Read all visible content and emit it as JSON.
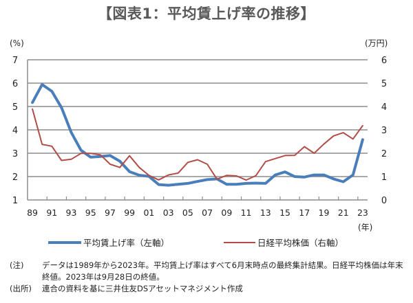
{
  "title": "【図表1：平均賃上げ率の推移】",
  "chart_data": {
    "type": "line",
    "title": "【図表1：平均賃上げ率の推移】",
    "xlabel": "(年)",
    "ylabel_left": "(%)",
    "ylabel_right": "(万円)",
    "ylim_left": [
      1,
      7
    ],
    "ylim_right": [
      0,
      6
    ],
    "yticks_left": [
      "1",
      "2",
      "3",
      "4",
      "5",
      "6",
      "7"
    ],
    "yticks_right": [
      "0",
      "1",
      "2",
      "3",
      "4",
      "5",
      "6"
    ],
    "grid": true,
    "legend_position": "bottom",
    "x": [
      1989,
      1990,
      1991,
      1992,
      1993,
      1994,
      1995,
      1996,
      1997,
      1998,
      1999,
      2000,
      2001,
      2002,
      2003,
      2004,
      2005,
      2006,
      2007,
      2008,
      2009,
      2010,
      2011,
      2012,
      2013,
      2014,
      2015,
      2016,
      2017,
      2018,
      2019,
      2020,
      2021,
      2022,
      2023
    ],
    "xtick_labels": [
      "89",
      "91",
      "93",
      "95",
      "97",
      "99",
      "01",
      "03",
      "05",
      "07",
      "09",
      "11",
      "13",
      "15",
      "17",
      "19",
      "21",
      "23"
    ],
    "series": [
      {
        "name": "平均賃上げ率（左軸）",
        "axis": "left",
        "color": "#4a7ebb",
        "values": [
          5.17,
          5.94,
          5.65,
          4.95,
          3.89,
          3.13,
          2.83,
          2.86,
          2.9,
          2.66,
          2.21,
          2.06,
          2.01,
          1.66,
          1.63,
          1.67,
          1.71,
          1.79,
          1.87,
          1.9,
          1.67,
          1.67,
          1.71,
          1.72,
          1.71,
          2.07,
          2.2,
          2.0,
          1.98,
          2.07,
          2.07,
          1.9,
          1.78,
          2.07,
          3.58
        ]
      },
      {
        "name": "日経平均株価（右軸）",
        "axis": "right",
        "color": "#b24c47",
        "values": [
          3.89,
          2.38,
          2.3,
          1.69,
          1.74,
          1.99,
          1.99,
          1.93,
          1.53,
          1.39,
          1.89,
          1.39,
          1.05,
          0.86,
          1.07,
          1.15,
          1.61,
          1.72,
          1.53,
          0.89,
          1.05,
          1.03,
          0.85,
          1.04,
          1.64,
          1.77,
          1.9,
          1.91,
          2.28,
          2.0,
          2.39,
          2.74,
          2.88,
          2.61,
          3.18
        ]
      }
    ]
  },
  "notes": [
    {
      "label": "(注)",
      "text": "データは1989年から2023年。平均賃上げ率はすべて6月末時点の最終集計結果。日経平均株価は年末終値。2023年は9月28日の終値。"
    },
    {
      "label": "(出所)",
      "text": "連合の資料を基に三井住友DSアセットマネジメント作成"
    }
  ]
}
